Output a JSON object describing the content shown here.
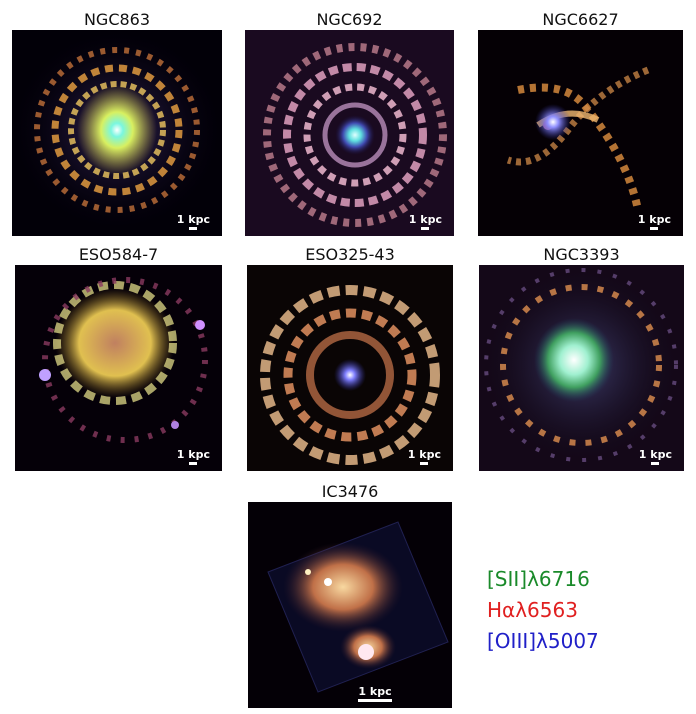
{
  "panels": [
    {
      "title": "NGC863",
      "scale_label": "1 kpc"
    },
    {
      "title": "NGC692",
      "scale_label": "1 kpc"
    },
    {
      "title": "NGC6627",
      "scale_label": "1 kpc"
    },
    {
      "title": "ESO584-7",
      "scale_label": "1 kpc"
    },
    {
      "title": "ESO325-43",
      "scale_label": "1 kpc"
    },
    {
      "title": "NGC3393",
      "scale_label": "1 kpc"
    },
    {
      "title": "IC3476",
      "scale_label": "1 kpc"
    }
  ],
  "legend": {
    "sii": {
      "text": "[SII]λ6716",
      "color": "#1a8a2a"
    },
    "halpha": {
      "text": "Hαλ6563",
      "color": "#e02020"
    },
    "oiii": {
      "text": "[OIII]λ5007",
      "color": "#2020c8"
    }
  }
}
